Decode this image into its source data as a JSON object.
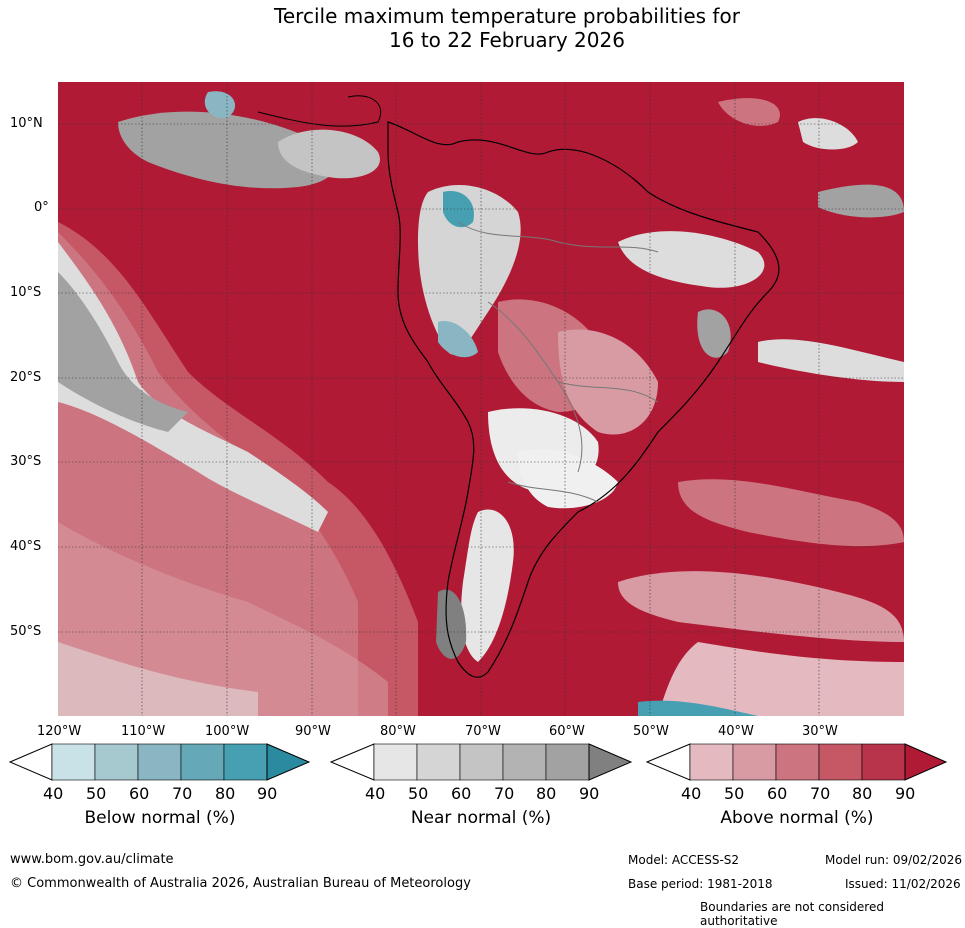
{
  "title": {
    "line1": "Tercile maximum temperature probabilities for",
    "line2": "16 to 22 February 2026"
  },
  "axes": {
    "lat_labels": [
      "10°N",
      "0°",
      "10°S",
      "20°S",
      "30°S",
      "40°S",
      "50°S"
    ],
    "lon_labels": [
      "120°W",
      "110°W",
      "100°W",
      "90°W",
      "80°W",
      "70°W",
      "60°W",
      "50°W",
      "40°W",
      "30°W"
    ]
  },
  "colorbars": [
    {
      "label": "Below normal (%)",
      "ticks": [
        "40",
        "50",
        "60",
        "70",
        "80",
        "90"
      ],
      "colors": [
        "#c8e2e8",
        "#a6c8cf",
        "#89b6c2",
        "#65a8b8",
        "#46a0b2",
        "#2a8aa0"
      ]
    },
    {
      "label": "Near normal (%)",
      "ticks": [
        "40",
        "50",
        "60",
        "70",
        "80",
        "90"
      ],
      "colors": [
        "#e6e6e6",
        "#d5d5d5",
        "#c4c4c4",
        "#b3b3b3",
        "#a2a2a2",
        "#808080"
      ]
    },
    {
      "label": "Above normal (%)",
      "ticks": [
        "40",
        "50",
        "60",
        "70",
        "80",
        "90"
      ],
      "colors": [
        "#e4b9bf",
        "#d89ba3",
        "#cc7580",
        "#c65866",
        "#b8344a",
        "#b01a35"
      ]
    }
  ],
  "footer": {
    "website": "www.bom.gov.au/climate",
    "copyright": "© Commonwealth of Australia 2026, Australian Bureau of Meteorology",
    "model": "Model: ACCESS-S2",
    "model_run": "Model run: 09/02/2026",
    "base_period": "Base period: 1981-2018",
    "issued": "Issued: 11/02/2026",
    "disclaimer": "Boundaries are not considered authoritative"
  }
}
